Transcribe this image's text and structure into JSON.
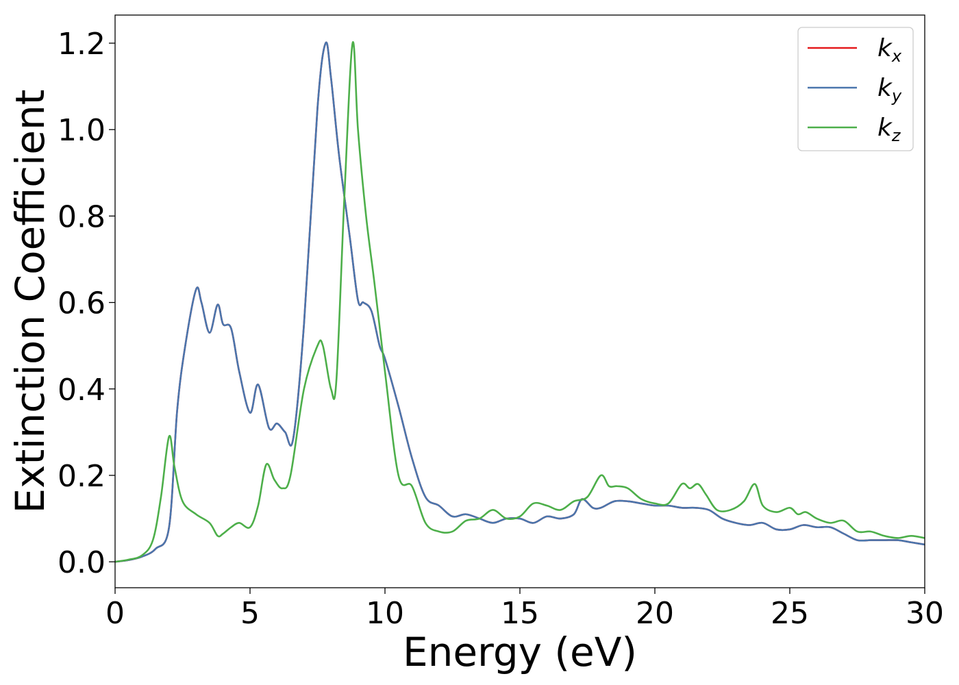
{
  "chart_data": {
    "type": "line",
    "title": "",
    "xlabel": "Energy (eV)",
    "ylabel": "Extinction Coefficient",
    "xlim": [
      0,
      30
    ],
    "ylim": [
      -0.06,
      1.265
    ],
    "xticks": [
      0,
      5,
      10,
      15,
      20,
      25,
      30
    ],
    "xtick_labels": [
      "0",
      "5",
      "10",
      "15",
      "20",
      "25",
      "30"
    ],
    "yticks": [
      0.0,
      0.2,
      0.4,
      0.6,
      0.8,
      1.0,
      1.2
    ],
    "ytick_labels": [
      "0.0",
      "0.2",
      "0.4",
      "0.6",
      "0.8",
      "1.0",
      "1.2"
    ],
    "grid": false,
    "legend_position": "top-right",
    "series": [
      {
        "name": "k_x",
        "label_base": "k",
        "label_sub": "x",
        "color": "#e41a1c",
        "x": [
          0,
          0.5,
          1.0,
          1.5,
          2.0,
          2.3,
          2.6,
          3.0,
          3.2,
          3.5,
          3.8,
          4.0,
          4.3,
          4.6,
          5.0,
          5.3,
          5.7,
          6.0,
          6.3,
          6.6,
          7.0,
          7.5,
          7.8,
          8.0,
          8.3,
          8.7,
          9.0,
          9.2,
          9.5,
          9.8,
          10.0,
          10.5,
          11.0,
          11.5,
          12.0,
          12.5,
          13.0,
          13.5,
          14.0,
          14.5,
          15.0,
          15.5,
          16.0,
          16.5,
          17.0,
          17.3,
          17.7,
          18.0,
          18.5,
          19.0,
          19.5,
          20.0,
          20.5,
          21.0,
          21.5,
          22.0,
          22.5,
          23.0,
          23.5,
          24.0,
          24.5,
          25.0,
          25.5,
          26.0,
          26.5,
          27.0,
          27.5,
          28.0,
          28.5,
          29.0,
          29.5,
          30.0
        ],
        "y": [
          0.0,
          0.004,
          0.012,
          0.03,
          0.08,
          0.35,
          0.5,
          0.63,
          0.6,
          0.53,
          0.595,
          0.55,
          0.54,
          0.44,
          0.345,
          0.41,
          0.31,
          0.32,
          0.3,
          0.285,
          0.55,
          1.05,
          1.2,
          1.12,
          0.94,
          0.75,
          0.605,
          0.6,
          0.58,
          0.5,
          0.47,
          0.36,
          0.24,
          0.15,
          0.13,
          0.105,
          0.11,
          0.1,
          0.09,
          0.1,
          0.1,
          0.09,
          0.105,
          0.1,
          0.11,
          0.145,
          0.125,
          0.125,
          0.14,
          0.14,
          0.135,
          0.13,
          0.13,
          0.125,
          0.125,
          0.12,
          0.1,
          0.09,
          0.085,
          0.09,
          0.075,
          0.075,
          0.085,
          0.08,
          0.08,
          0.065,
          0.05,
          0.05,
          0.05,
          0.05,
          0.045,
          0.04
        ]
      },
      {
        "name": "k_y",
        "label_base": "k",
        "label_sub": "y",
        "color": "#4a76ad",
        "x": [
          0,
          0.5,
          1.0,
          1.5,
          2.0,
          2.3,
          2.6,
          3.0,
          3.2,
          3.5,
          3.8,
          4.0,
          4.3,
          4.6,
          5.0,
          5.3,
          5.7,
          6.0,
          6.3,
          6.6,
          7.0,
          7.5,
          7.8,
          8.0,
          8.3,
          8.7,
          9.0,
          9.2,
          9.5,
          9.8,
          10.0,
          10.5,
          11.0,
          11.5,
          12.0,
          12.5,
          13.0,
          13.5,
          14.0,
          14.5,
          15.0,
          15.5,
          16.0,
          16.5,
          17.0,
          17.3,
          17.7,
          18.0,
          18.5,
          19.0,
          19.5,
          20.0,
          20.5,
          21.0,
          21.5,
          22.0,
          22.5,
          23.0,
          23.5,
          24.0,
          24.5,
          25.0,
          25.5,
          26.0,
          26.5,
          27.0,
          27.5,
          28.0,
          28.5,
          29.0,
          29.5,
          30.0
        ],
        "y": [
          0.0,
          0.004,
          0.012,
          0.03,
          0.08,
          0.35,
          0.5,
          0.63,
          0.6,
          0.53,
          0.595,
          0.55,
          0.54,
          0.44,
          0.345,
          0.41,
          0.31,
          0.32,
          0.3,
          0.285,
          0.55,
          1.05,
          1.2,
          1.12,
          0.94,
          0.75,
          0.605,
          0.6,
          0.58,
          0.5,
          0.47,
          0.36,
          0.24,
          0.15,
          0.13,
          0.105,
          0.11,
          0.1,
          0.09,
          0.1,
          0.1,
          0.09,
          0.105,
          0.1,
          0.11,
          0.145,
          0.125,
          0.125,
          0.14,
          0.14,
          0.135,
          0.13,
          0.13,
          0.125,
          0.125,
          0.12,
          0.1,
          0.09,
          0.085,
          0.09,
          0.075,
          0.075,
          0.085,
          0.08,
          0.08,
          0.065,
          0.05,
          0.05,
          0.05,
          0.05,
          0.045,
          0.04
        ]
      },
      {
        "name": "k_z",
        "label_base": "k",
        "label_sub": "z",
        "color": "#4daf4a",
        "x": [
          0,
          0.5,
          1.0,
          1.4,
          1.7,
          2.0,
          2.2,
          2.5,
          3.0,
          3.5,
          3.8,
          4.0,
          4.3,
          4.6,
          5.0,
          5.3,
          5.6,
          5.9,
          6.2,
          6.5,
          7.0,
          7.5,
          7.7,
          8.0,
          8.2,
          8.5,
          8.8,
          9.0,
          9.3,
          9.6,
          10.0,
          10.5,
          11.0,
          11.5,
          12.0,
          12.5,
          13.0,
          13.5,
          14.0,
          14.5,
          15.0,
          15.5,
          16.0,
          16.5,
          17.0,
          17.5,
          18.0,
          18.3,
          18.6,
          19.0,
          19.5,
          20.0,
          20.5,
          21.0,
          21.3,
          21.6,
          21.9,
          22.3,
          22.8,
          23.3,
          23.7,
          24.0,
          24.5,
          25.0,
          25.3,
          25.6,
          26.0,
          26.5,
          27.0,
          27.5,
          28.0,
          28.5,
          29.0,
          29.5,
          30.0
        ],
        "y": [
          0.0,
          0.005,
          0.015,
          0.05,
          0.15,
          0.29,
          0.22,
          0.14,
          0.11,
          0.09,
          0.06,
          0.065,
          0.08,
          0.09,
          0.08,
          0.13,
          0.225,
          0.19,
          0.17,
          0.2,
          0.4,
          0.5,
          0.5,
          0.4,
          0.42,
          0.85,
          1.2,
          1.0,
          0.8,
          0.65,
          0.44,
          0.2,
          0.175,
          0.09,
          0.07,
          0.07,
          0.095,
          0.1,
          0.12,
          0.1,
          0.105,
          0.135,
          0.13,
          0.12,
          0.14,
          0.15,
          0.2,
          0.175,
          0.175,
          0.17,
          0.145,
          0.135,
          0.135,
          0.18,
          0.17,
          0.18,
          0.155,
          0.12,
          0.12,
          0.14,
          0.18,
          0.13,
          0.115,
          0.125,
          0.11,
          0.115,
          0.1,
          0.09,
          0.095,
          0.07,
          0.07,
          0.06,
          0.055,
          0.06,
          0.055
        ]
      }
    ]
  }
}
